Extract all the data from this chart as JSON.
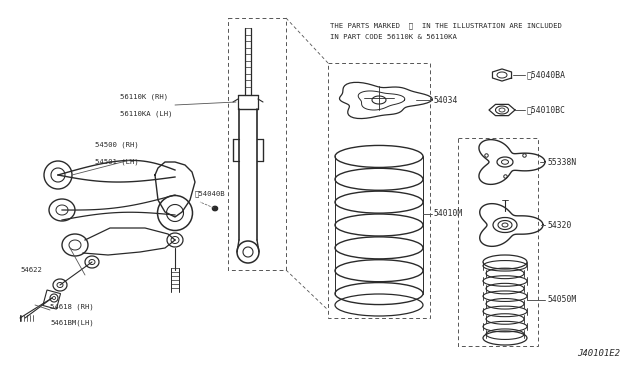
{
  "background_color": "#ffffff",
  "line_color": "#2a2a2a",
  "text_color": "#2a2a2a",
  "note_line1": "THE PARTS MARKED  ※  IN THE ILLUSTRATION ARE INCLUDED",
  "note_line2": "IN PART CODE 56110K & 56110KA",
  "diagram_id": "J40101E2"
}
